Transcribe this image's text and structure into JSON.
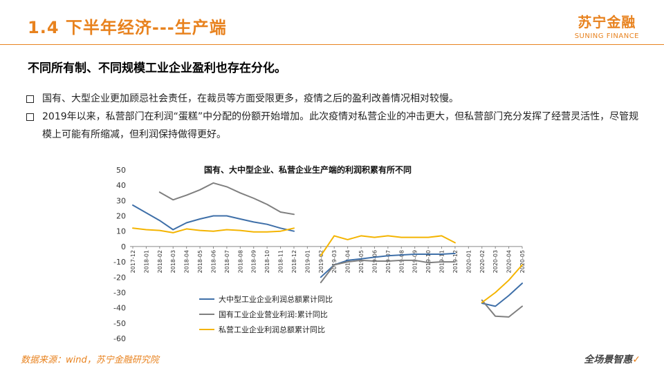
{
  "header": {
    "title": "1.4 下半年经济---生产端"
  },
  "brand": {
    "name_cn": "苏宁金融",
    "name_en": "SUNING FINANCE"
  },
  "subtitle": "不同所有制、不同规模工业企业盈利也存在分化。",
  "bullets": [
    "国有、大型企业更加顾忌社会责任，在裁员等方面受限更多，疫情之后的盈利改善情况相对较慢。",
    "2019年以来，私营部门在利润“蛋糕”中分配的份额开始增加。此次疫情对私营企业的冲击更大，但私营部门充分发挥了经营灵活性，尽管规模上可能有所缩减，但利润保持做得更好。"
  ],
  "footer": {
    "source": "数据来源：wind，苏宁金融研究院",
    "slogan": "全场景智惠"
  },
  "colors": {
    "accent": "#e8821e",
    "large_medium": "#3e6fa8",
    "state_owned": "#7f7f7f",
    "private": "#f4b400"
  },
  "chart_data": {
    "type": "line",
    "title": "国有、大中型企业、私营企业生产端的利润积累有所不同",
    "xlabel": "",
    "ylabel": "",
    "ylim": [
      -60,
      50
    ],
    "yticks": [
      50,
      40,
      30,
      20,
      10,
      0,
      -10,
      -20,
      -30,
      -40,
      -50,
      -60
    ],
    "grid": false,
    "legend_position": "bottom-left",
    "categories": [
      "2017-12",
      "2018-01",
      "2018-02",
      "2018-03",
      "2018-04",
      "2018-05",
      "2018-06",
      "2018-07",
      "2018-08",
      "2018-09",
      "2018-10",
      "2018-11",
      "2018-12",
      "2019-01",
      "2019-02",
      "2019-03",
      "2019-04",
      "2019-05",
      "2019-06",
      "2019-07",
      "2019-08",
      "2019-09",
      "2019-10",
      "2019-11",
      "2019-12",
      "2020-01",
      "2020-02",
      "2020-03",
      "2020-04",
      "2020-05"
    ],
    "series": [
      {
        "name": "大中型工业企业利润总额累计同比",
        "values": [
          27,
          22,
          17,
          11,
          15.5,
          18,
          20,
          20,
          18,
          16,
          14.5,
          12,
          10,
          null,
          -20,
          -12,
          -9,
          -8,
          -7,
          -6,
          -5.5,
          -5,
          -5,
          -5,
          -4.5,
          null,
          -37,
          -39,
          -32,
          -24
        ]
      },
      {
        "name": "国有工业企业营业利润:累计同比",
        "values": [
          null,
          null,
          35.5,
          30.5,
          33.5,
          37,
          41.5,
          39,
          35,
          31.5,
          27.5,
          22.5,
          21,
          null,
          -23.5,
          -12,
          -10,
          -9,
          -9.5,
          -9.5,
          -9,
          -9,
          -10.5,
          -10,
          -10,
          null,
          -35,
          -45.5,
          -46,
          -39
        ]
      },
      {
        "name": "私营工业企业利润总额累计同比",
        "values": [
          12,
          11,
          10.5,
          9,
          11.5,
          10.5,
          10,
          11,
          10.5,
          9.5,
          9.5,
          10,
          12,
          null,
          -6,
          7,
          4.5,
          7,
          6,
          7,
          6,
          6,
          6,
          7,
          2.5,
          null,
          -36.5,
          -30,
          -22,
          -12
        ]
      }
    ]
  }
}
